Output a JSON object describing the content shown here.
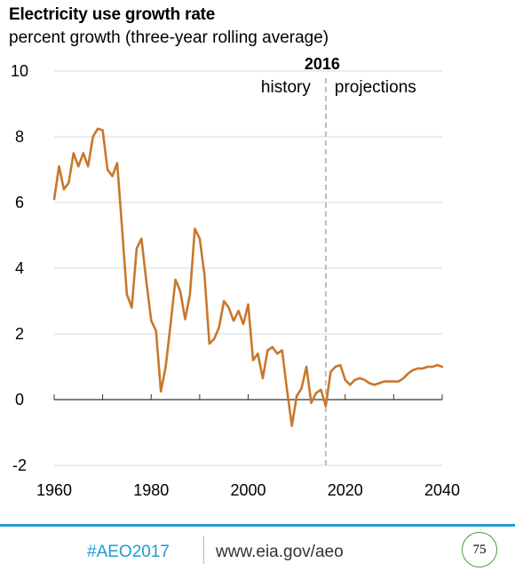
{
  "colors": {
    "line": "#c8782a",
    "accent": "#1f9bd6",
    "grid": "#d9d9d9",
    "divider": "#aaaaaa",
    "badge": "#4a9a3a"
  },
  "chart_data": {
    "type": "line",
    "title": "Electricity use growth rate",
    "subtitle": "percent growth (three-year rolling average)",
    "xlim": [
      1960,
      2040
    ],
    "ylim": [
      -2,
      10
    ],
    "x_ticks": [
      1960,
      1980,
      2000,
      2020,
      2040
    ],
    "y_ticks": [
      -2,
      0,
      2,
      4,
      6,
      8,
      10
    ],
    "grid": "horizontal",
    "divider": {
      "x": 2016,
      "label": "2016",
      "left_label": "history",
      "right_label": "projections"
    },
    "series": [
      {
        "x": [
          1960,
          1961,
          1962,
          1963,
          1964,
          1965,
          1966,
          1967,
          1968,
          1969,
          1970,
          1971,
          1972,
          1973,
          1974,
          1975,
          1976,
          1977,
          1978,
          1979,
          1980,
          1981,
          1982,
          1983,
          1984,
          1985,
          1986,
          1987,
          1988,
          1989,
          1990,
          1991,
          1992,
          1993,
          1994,
          1995,
          1996,
          1997,
          1998,
          1999,
          2000,
          2001,
          2002,
          2003,
          2004,
          2005,
          2006,
          2007,
          2008,
          2009,
          2010,
          2011,
          2012,
          2013,
          2014,
          2015,
          2016,
          2017,
          2018,
          2019,
          2020,
          2021,
          2022,
          2023,
          2024,
          2025,
          2026,
          2027,
          2028,
          2029,
          2030,
          2031,
          2032,
          2033,
          2034,
          2035,
          2036,
          2037,
          2038,
          2039,
          2040
        ],
        "y": [
          6.1,
          7.1,
          6.4,
          6.6,
          7.5,
          7.1,
          7.5,
          7.1,
          8.0,
          8.25,
          8.2,
          7.0,
          6.8,
          7.2,
          5.2,
          3.2,
          2.8,
          4.6,
          4.9,
          3.6,
          2.4,
          2.1,
          0.25,
          1.0,
          2.3,
          3.65,
          3.3,
          2.45,
          3.2,
          5.2,
          4.9,
          3.8,
          1.7,
          1.85,
          2.2,
          3.0,
          2.8,
          2.4,
          2.7,
          2.3,
          2.9,
          1.2,
          1.4,
          0.65,
          1.5,
          1.6,
          1.4,
          1.5,
          0.3,
          -0.8,
          0.1,
          0.35,
          1.0,
          -0.1,
          0.2,
          0.3,
          -0.2,
          0.85,
          1.0,
          1.05,
          0.6,
          0.45,
          0.6,
          0.65,
          0.6,
          0.5,
          0.45,
          0.5,
          0.55,
          0.55,
          0.55,
          0.55,
          0.65,
          0.8,
          0.9,
          0.95,
          0.95,
          1.0,
          1.0,
          1.05,
          1.0
        ]
      }
    ]
  },
  "footer": {
    "hashtag": "#AEO2017",
    "url": "www.eia.gov/aeo",
    "page_number": "75"
  }
}
